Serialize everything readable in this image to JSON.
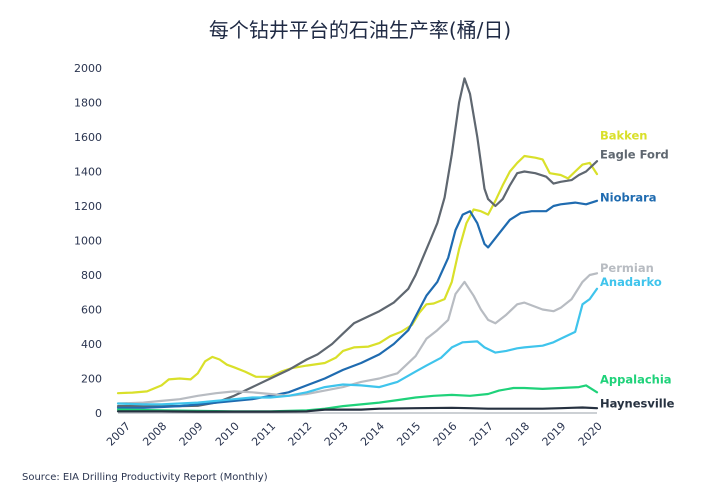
{
  "chart_data": {
    "type": "line",
    "title": "每个钻井平台的石油生产率(桶/日)",
    "xlabel": "",
    "ylabel": "",
    "xlim": [
      2006.8,
      2020.0
    ],
    "ylim": [
      0,
      2000
    ],
    "yticks": [
      0,
      200,
      400,
      600,
      800,
      1000,
      1200,
      1400,
      1600,
      1800,
      2000
    ],
    "xticks": [
      2007,
      2008,
      2009,
      2010,
      2011,
      2012,
      2013,
      2014,
      2015,
      2016,
      2017,
      2018,
      2019,
      2020
    ],
    "xtick_labels": [
      "2007",
      "2008",
      "2009",
      "2010",
      "2011",
      "2012",
      "2013",
      "2014",
      "2015",
      "2016",
      "2017",
      "2018",
      "2019",
      "2020"
    ],
    "grid": false,
    "legend": "right, inline labels",
    "series": [
      {
        "name": "Bakken",
        "color": "#d9e02a",
        "points": [
          [
            2006.8,
            115
          ],
          [
            2007.2,
            118
          ],
          [
            2007.6,
            125
          ],
          [
            2008.0,
            160
          ],
          [
            2008.2,
            195
          ],
          [
            2008.5,
            200
          ],
          [
            2008.8,
            195
          ],
          [
            2009.0,
            230
          ],
          [
            2009.2,
            300
          ],
          [
            2009.4,
            325
          ],
          [
            2009.6,
            310
          ],
          [
            2009.8,
            280
          ],
          [
            2010.0,
            265
          ],
          [
            2010.3,
            240
          ],
          [
            2010.6,
            210
          ],
          [
            2011.0,
            210
          ],
          [
            2011.3,
            240
          ],
          [
            2011.6,
            260
          ],
          [
            2012.0,
            275
          ],
          [
            2012.5,
            290
          ],
          [
            2012.8,
            320
          ],
          [
            2013.0,
            360
          ],
          [
            2013.3,
            380
          ],
          [
            2013.7,
            385
          ],
          [
            2014.0,
            405
          ],
          [
            2014.3,
            445
          ],
          [
            2014.6,
            470
          ],
          [
            2014.9,
            510
          ],
          [
            2015.1,
            580
          ],
          [
            2015.3,
            630
          ],
          [
            2015.5,
            635
          ],
          [
            2015.8,
            660
          ],
          [
            2016.0,
            760
          ],
          [
            2016.2,
            950
          ],
          [
            2016.4,
            1100
          ],
          [
            2016.6,
            1180
          ],
          [
            2016.8,
            1170
          ],
          [
            2017.0,
            1150
          ],
          [
            2017.2,
            1230
          ],
          [
            2017.4,
            1320
          ],
          [
            2017.6,
            1400
          ],
          [
            2017.8,
            1450
          ],
          [
            2018.0,
            1490
          ],
          [
            2018.3,
            1480
          ],
          [
            2018.5,
            1470
          ],
          [
            2018.7,
            1390
          ],
          [
            2019.0,
            1380
          ],
          [
            2019.2,
            1360
          ],
          [
            2019.4,
            1400
          ],
          [
            2019.6,
            1440
          ],
          [
            2019.8,
            1450
          ],
          [
            2020.0,
            1385
          ]
        ]
      },
      {
        "name": "Eagle Ford",
        "color": "#5f6770",
        "points": [
          [
            2006.8,
            40
          ],
          [
            2007.5,
            40
          ],
          [
            2008.0,
            40
          ],
          [
            2008.5,
            40
          ],
          [
            2009.0,
            42
          ],
          [
            2009.5,
            60
          ],
          [
            2010.0,
            100
          ],
          [
            2010.5,
            150
          ],
          [
            2011.0,
            200
          ],
          [
            2011.5,
            250
          ],
          [
            2012.0,
            310
          ],
          [
            2012.3,
            340
          ],
          [
            2012.7,
            400
          ],
          [
            2013.0,
            460
          ],
          [
            2013.3,
            520
          ],
          [
            2013.7,
            560
          ],
          [
            2014.0,
            590
          ],
          [
            2014.4,
            640
          ],
          [
            2014.8,
            720
          ],
          [
            2015.0,
            800
          ],
          [
            2015.2,
            900
          ],
          [
            2015.4,
            1000
          ],
          [
            2015.6,
            1100
          ],
          [
            2015.8,
            1250
          ],
          [
            2016.0,
            1500
          ],
          [
            2016.2,
            1800
          ],
          [
            2016.35,
            1940
          ],
          [
            2016.5,
            1850
          ],
          [
            2016.7,
            1600
          ],
          [
            2016.9,
            1300
          ],
          [
            2017.0,
            1240
          ],
          [
            2017.2,
            1200
          ],
          [
            2017.4,
            1240
          ],
          [
            2017.6,
            1320
          ],
          [
            2017.8,
            1390
          ],
          [
            2018.0,
            1400
          ],
          [
            2018.3,
            1390
          ],
          [
            2018.6,
            1370
          ],
          [
            2018.8,
            1330
          ],
          [
            2019.0,
            1340
          ],
          [
            2019.3,
            1350
          ],
          [
            2019.5,
            1380
          ],
          [
            2019.7,
            1400
          ],
          [
            2020.0,
            1460
          ]
        ]
      },
      {
        "name": "Niobrara",
        "color": "#1f6bb0",
        "points": [
          [
            2006.8,
            30
          ],
          [
            2007.5,
            30
          ],
          [
            2008.0,
            35
          ],
          [
            2008.5,
            40
          ],
          [
            2009.0,
            50
          ],
          [
            2009.5,
            60
          ],
          [
            2010.0,
            70
          ],
          [
            2010.5,
            80
          ],
          [
            2011.0,
            100
          ],
          [
            2011.5,
            120
          ],
          [
            2012.0,
            160
          ],
          [
            2012.5,
            200
          ],
          [
            2013.0,
            250
          ],
          [
            2013.5,
            290
          ],
          [
            2014.0,
            340
          ],
          [
            2014.4,
            400
          ],
          [
            2014.8,
            480
          ],
          [
            2015.0,
            560
          ],
          [
            2015.3,
            680
          ],
          [
            2015.6,
            760
          ],
          [
            2015.9,
            900
          ],
          [
            2016.1,
            1060
          ],
          [
            2016.3,
            1150
          ],
          [
            2016.5,
            1170
          ],
          [
            2016.7,
            1100
          ],
          [
            2016.9,
            980
          ],
          [
            2017.0,
            960
          ],
          [
            2017.3,
            1040
          ],
          [
            2017.6,
            1120
          ],
          [
            2017.9,
            1160
          ],
          [
            2018.2,
            1170
          ],
          [
            2018.6,
            1170
          ],
          [
            2018.8,
            1200
          ],
          [
            2019.0,
            1210
          ],
          [
            2019.4,
            1220
          ],
          [
            2019.7,
            1210
          ],
          [
            2020.0,
            1230
          ]
        ]
      },
      {
        "name": "Permian",
        "color": "#b8bcc2",
        "points": [
          [
            2006.8,
            55
          ],
          [
            2007.5,
            60
          ],
          [
            2008.0,
            70
          ],
          [
            2008.5,
            80
          ],
          [
            2009.0,
            100
          ],
          [
            2009.5,
            115
          ],
          [
            2010.0,
            125
          ],
          [
            2010.5,
            120
          ],
          [
            2011.0,
            110
          ],
          [
            2011.5,
            100
          ],
          [
            2012.0,
            110
          ],
          [
            2012.5,
            130
          ],
          [
            2013.0,
            150
          ],
          [
            2013.5,
            180
          ],
          [
            2014.0,
            200
          ],
          [
            2014.5,
            230
          ],
          [
            2015.0,
            330
          ],
          [
            2015.3,
            430
          ],
          [
            2015.6,
            480
          ],
          [
            2015.9,
            540
          ],
          [
            2016.1,
            690
          ],
          [
            2016.35,
            760
          ],
          [
            2016.6,
            680
          ],
          [
            2016.8,
            600
          ],
          [
            2017.0,
            540
          ],
          [
            2017.2,
            520
          ],
          [
            2017.5,
            570
          ],
          [
            2017.8,
            630
          ],
          [
            2018.0,
            640
          ],
          [
            2018.5,
            600
          ],
          [
            2018.8,
            590
          ],
          [
            2019.0,
            610
          ],
          [
            2019.3,
            660
          ],
          [
            2019.6,
            760
          ],
          [
            2019.8,
            800
          ],
          [
            2020.0,
            810
          ]
        ]
      },
      {
        "name": "Anadarko",
        "color": "#3fc4ec",
        "points": [
          [
            2006.8,
            55
          ],
          [
            2007.5,
            50
          ],
          [
            2008.0,
            50
          ],
          [
            2008.5,
            55
          ],
          [
            2009.0,
            60
          ],
          [
            2009.5,
            70
          ],
          [
            2010.0,
            80
          ],
          [
            2010.5,
            90
          ],
          [
            2011.0,
            90
          ],
          [
            2011.5,
            100
          ],
          [
            2012.0,
            120
          ],
          [
            2012.5,
            150
          ],
          [
            2013.0,
            165
          ],
          [
            2013.5,
            160
          ],
          [
            2014.0,
            150
          ],
          [
            2014.5,
            180
          ],
          [
            2015.0,
            240
          ],
          [
            2015.3,
            275
          ],
          [
            2015.7,
            320
          ],
          [
            2016.0,
            380
          ],
          [
            2016.3,
            410
          ],
          [
            2016.7,
            415
          ],
          [
            2016.9,
            380
          ],
          [
            2017.2,
            350
          ],
          [
            2017.5,
            360
          ],
          [
            2017.8,
            375
          ],
          [
            2018.0,
            380
          ],
          [
            2018.5,
            390
          ],
          [
            2018.8,
            410
          ],
          [
            2019.0,
            430
          ],
          [
            2019.4,
            470
          ],
          [
            2019.6,
            630
          ],
          [
            2019.8,
            660
          ],
          [
            2020.0,
            720
          ]
        ]
      },
      {
        "name": "Appalachia",
        "color": "#1fd27a",
        "points": [
          [
            2006.8,
            20
          ],
          [
            2008.0,
            15
          ],
          [
            2009.0,
            12
          ],
          [
            2010.0,
            10
          ],
          [
            2011.0,
            10
          ],
          [
            2012.0,
            15
          ],
          [
            2012.5,
            25
          ],
          [
            2013.0,
            40
          ],
          [
            2013.5,
            50
          ],
          [
            2014.0,
            60
          ],
          [
            2014.5,
            75
          ],
          [
            2015.0,
            90
          ],
          [
            2015.5,
            100
          ],
          [
            2016.0,
            105
          ],
          [
            2016.5,
            100
          ],
          [
            2017.0,
            110
          ],
          [
            2017.3,
            130
          ],
          [
            2017.7,
            145
          ],
          [
            2018.0,
            145
          ],
          [
            2018.5,
            140
          ],
          [
            2019.0,
            145
          ],
          [
            2019.5,
            150
          ],
          [
            2019.7,
            160
          ],
          [
            2020.0,
            120
          ]
        ]
      },
      {
        "name": "Haynesville",
        "color": "#263140",
        "points": [
          [
            2006.8,
            10
          ],
          [
            2008.0,
            10
          ],
          [
            2009.0,
            8
          ],
          [
            2010.0,
            8
          ],
          [
            2011.0,
            8
          ],
          [
            2012.0,
            10
          ],
          [
            2012.5,
            20
          ],
          [
            2013.0,
            20
          ],
          [
            2013.5,
            20
          ],
          [
            2014.0,
            25
          ],
          [
            2015.0,
            28
          ],
          [
            2016.0,
            30
          ],
          [
            2016.5,
            28
          ],
          [
            2017.0,
            25
          ],
          [
            2017.5,
            25
          ],
          [
            2018.0,
            25
          ],
          [
            2018.5,
            25
          ],
          [
            2019.0,
            28
          ],
          [
            2019.3,
            30
          ],
          [
            2019.6,
            32
          ],
          [
            2020.0,
            28
          ]
        ]
      }
    ]
  },
  "source_text": "Source: EIA Drilling Productivity Report (Monthly)"
}
